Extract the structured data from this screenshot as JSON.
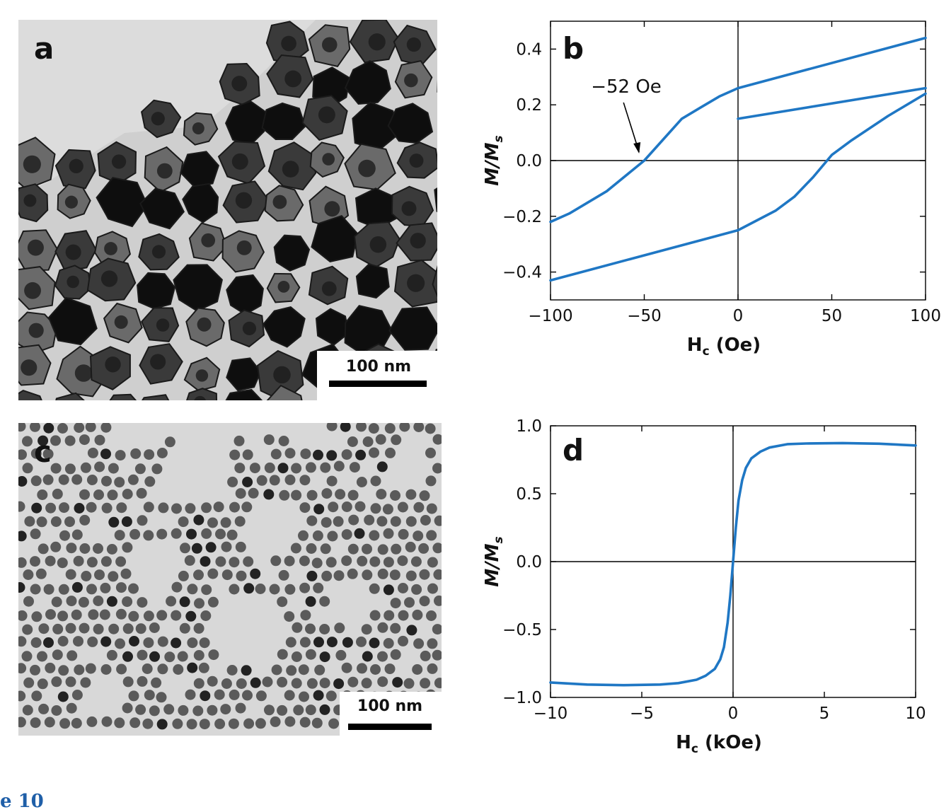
{
  "figure": {
    "caption_fragment": "e 10",
    "panels": {
      "a": {
        "letter": "a",
        "scale_label": "100 nm"
      },
      "b": {
        "letter": "b"
      },
      "c": {
        "letter": "c",
        "scale_label": "100 nm"
      },
      "d": {
        "letter": "d"
      }
    }
  },
  "chart_data": [
    {
      "panel": "b",
      "type": "line",
      "xlabel": "H",
      "xlabel_sub": "c",
      "xlabel_unit": " (Oe)",
      "ylabel": "M/M",
      "ylabel_sub": "s",
      "xlim": [
        -100,
        100
      ],
      "ylim": [
        -0.5,
        0.5
      ],
      "xticks": [
        -100,
        -50,
        0,
        50,
        100
      ],
      "xtick_labels": [
        "−100",
        "−50",
        "0",
        "50",
        "100"
      ],
      "yticks": [
        -0.4,
        -0.2,
        0.0,
        0.2,
        0.4
      ],
      "ytick_labels": [
        "−0.4",
        "−0.2",
        "0.0",
        "0.2",
        "0.4"
      ],
      "annotation": {
        "text": "−52 Oe",
        "x": -52,
        "y": 0.0
      },
      "color": "#1f77c4",
      "series": [
        {
          "x": [
            0,
            100
          ],
          "y": [
            0.26,
            0.44
          ]
        },
        {
          "x": [
            0,
            100
          ],
          "y": [
            0.15,
            0.26
          ]
        },
        {
          "x": [
            -100,
            -90,
            -70,
            -50,
            -30,
            -20,
            -10,
            0
          ],
          "y": [
            -0.22,
            -0.19,
            -0.11,
            0.0,
            0.15,
            0.19,
            0.23,
            0.26
          ]
        },
        {
          "x": [
            -100,
            0
          ],
          "y": [
            -0.43,
            -0.25
          ]
        },
        {
          "x": [
            0,
            20,
            30,
            40,
            50,
            60,
            80,
            100
          ],
          "y": [
            -0.25,
            -0.18,
            -0.13,
            -0.06,
            0.02,
            0.07,
            0.16,
            0.24
          ]
        }
      ]
    },
    {
      "panel": "d",
      "type": "line",
      "xlabel": "H",
      "xlabel_sub": "c",
      "xlabel_unit": " (kOe)",
      "ylabel": "M/M",
      "ylabel_sub": "s",
      "xlim": [
        -10,
        10
      ],
      "ylim": [
        -1.0,
        1.0
      ],
      "xticks": [
        -10,
        -5,
        0,
        5,
        10
      ],
      "xtick_labels": [
        "−10",
        "−5",
        "0",
        "5",
        "10"
      ],
      "yticks": [
        -1.0,
        -0.5,
        0.0,
        0.5,
        1.0
      ],
      "ytick_labels": [
        "−1.0",
        "−0.5",
        "0.0",
        "0.5",
        "1.0"
      ],
      "color": "#1f77c4",
      "series": [
        {
          "x": [
            -10,
            -8,
            -6,
            -4,
            -3,
            -2,
            -1.5,
            -1,
            -0.7,
            -0.5,
            -0.3,
            -0.15,
            0,
            0.15,
            0.3,
            0.5,
            0.7,
            1,
            1.5,
            2,
            3,
            4,
            6,
            8,
            10
          ],
          "y": [
            -0.89,
            -0.905,
            -0.91,
            -0.905,
            -0.895,
            -0.87,
            -0.84,
            -0.79,
            -0.72,
            -0.63,
            -0.45,
            -0.25,
            0.0,
            0.25,
            0.45,
            0.6,
            0.69,
            0.76,
            0.81,
            0.84,
            0.865,
            0.87,
            0.873,
            0.868,
            0.855
          ]
        }
      ]
    }
  ]
}
